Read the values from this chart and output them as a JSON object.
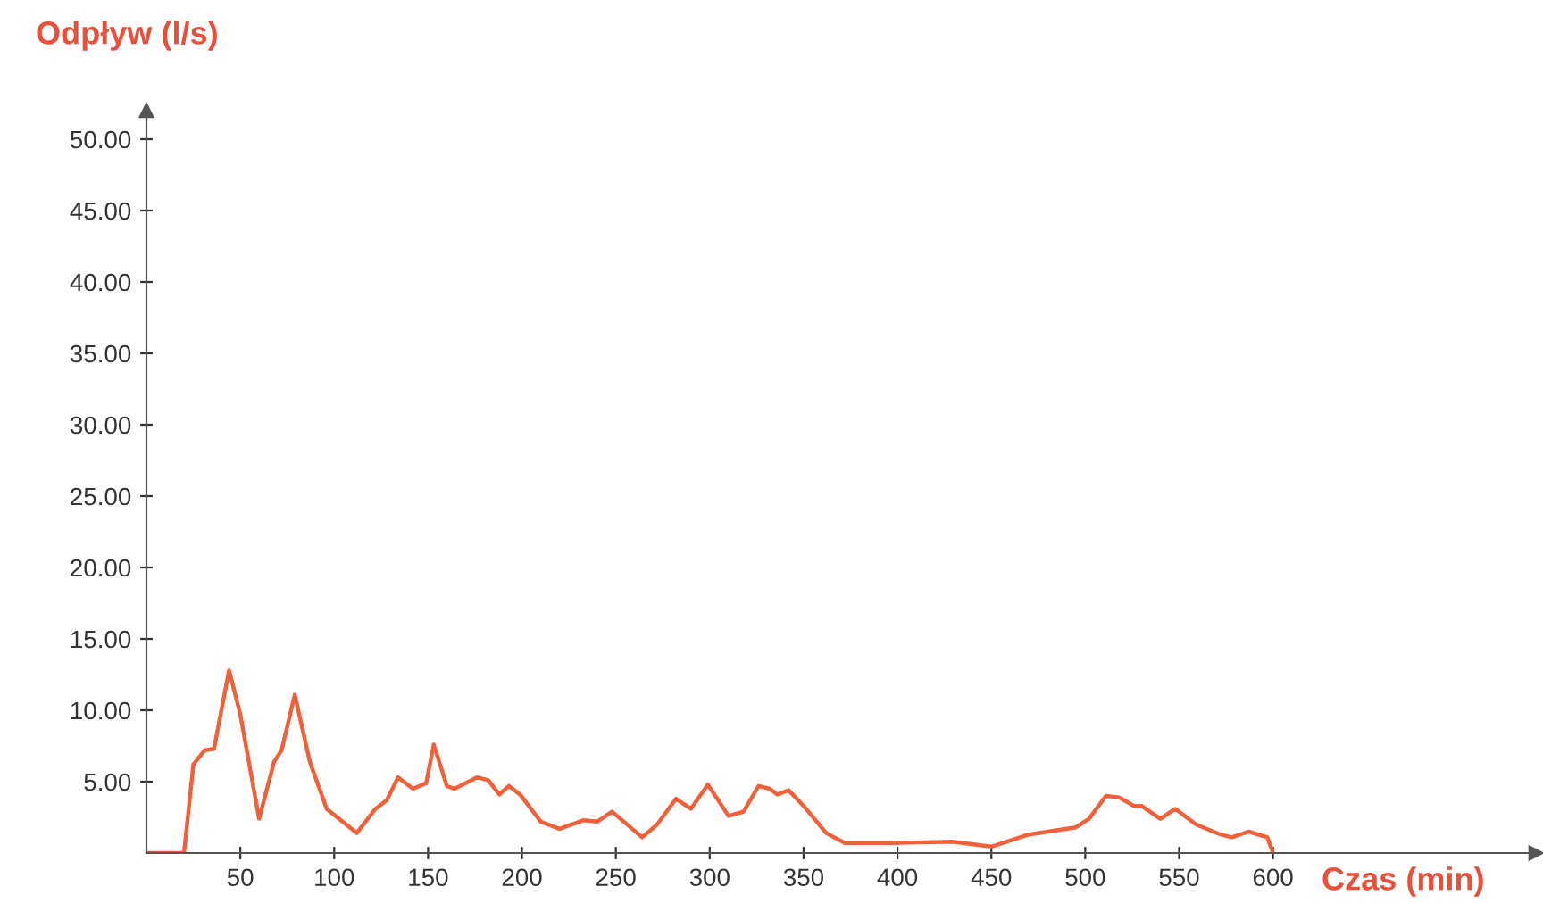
{
  "chart_data": {
    "type": "line",
    "xlabel": "Czas (min)",
    "ylabel": "Odpływ (l/s)",
    "xlim": [
      0,
      740
    ],
    "ylim": [
      0,
      52
    ],
    "xticks": [
      50,
      100,
      150,
      200,
      250,
      300,
      350,
      400,
      450,
      500,
      550,
      600
    ],
    "yticks": [
      {
        "value": 5,
        "label": "5.00"
      },
      {
        "value": 10,
        "label": "10.00"
      },
      {
        "value": 15,
        "label": "15.00"
      },
      {
        "value": 20,
        "label": "20.00"
      },
      {
        "value": 25,
        "label": "25.00"
      },
      {
        "value": 30,
        "label": "30.00"
      },
      {
        "value": 35,
        "label": "35.00"
      },
      {
        "value": 40,
        "label": "40.00"
      },
      {
        "value": 45,
        "label": "45.00"
      },
      {
        "value": 50,
        "label": "50.00"
      }
    ],
    "grid": false,
    "legend": false,
    "marker": "none",
    "line_style": "solid",
    "series": [
      {
        "color": "#f0613a",
        "x": [
          0,
          20,
          25,
          31,
          36,
          44,
          50,
          60,
          68,
          72,
          79,
          87,
          96,
          112,
          122,
          128,
          134,
          142,
          149,
          153,
          160,
          164,
          176,
          182,
          188,
          193,
          199,
          210,
          220,
          233,
          240,
          248,
          264,
          272,
          282,
          290,
          299,
          310,
          318,
          326,
          332,
          336,
          342,
          350,
          362,
          372,
          397,
          429,
          450,
          470,
          495,
          502,
          511,
          518,
          526,
          530,
          540,
          548,
          559,
          572,
          578,
          587,
          597,
          600
        ],
        "values": [
          0,
          0,
          6.2,
          7.2,
          7.3,
          12.8,
          9.7,
          2.4,
          6.4,
          7.2,
          11.1,
          6.4,
          3.1,
          1.4,
          3.1,
          3.7,
          5.3,
          4.5,
          4.9,
          7.6,
          4.7,
          4.5,
          5.3,
          5.1,
          4.1,
          4.7,
          4.1,
          2.2,
          1.7,
          2.3,
          2.2,
          2.9,
          1.1,
          2.0,
          3.8,
          3.1,
          4.8,
          2.6,
          2.9,
          4.7,
          4.5,
          4.1,
          4.4,
          3.3,
          1.4,
          0.7,
          0.7,
          0.8,
          0.45,
          1.3,
          1.8,
          2.4,
          4.0,
          3.9,
          3.3,
          3.3,
          2.4,
          3.1,
          2.0,
          1.3,
          1.1,
          1.5,
          1.1,
          0
        ]
      }
    ]
  }
}
